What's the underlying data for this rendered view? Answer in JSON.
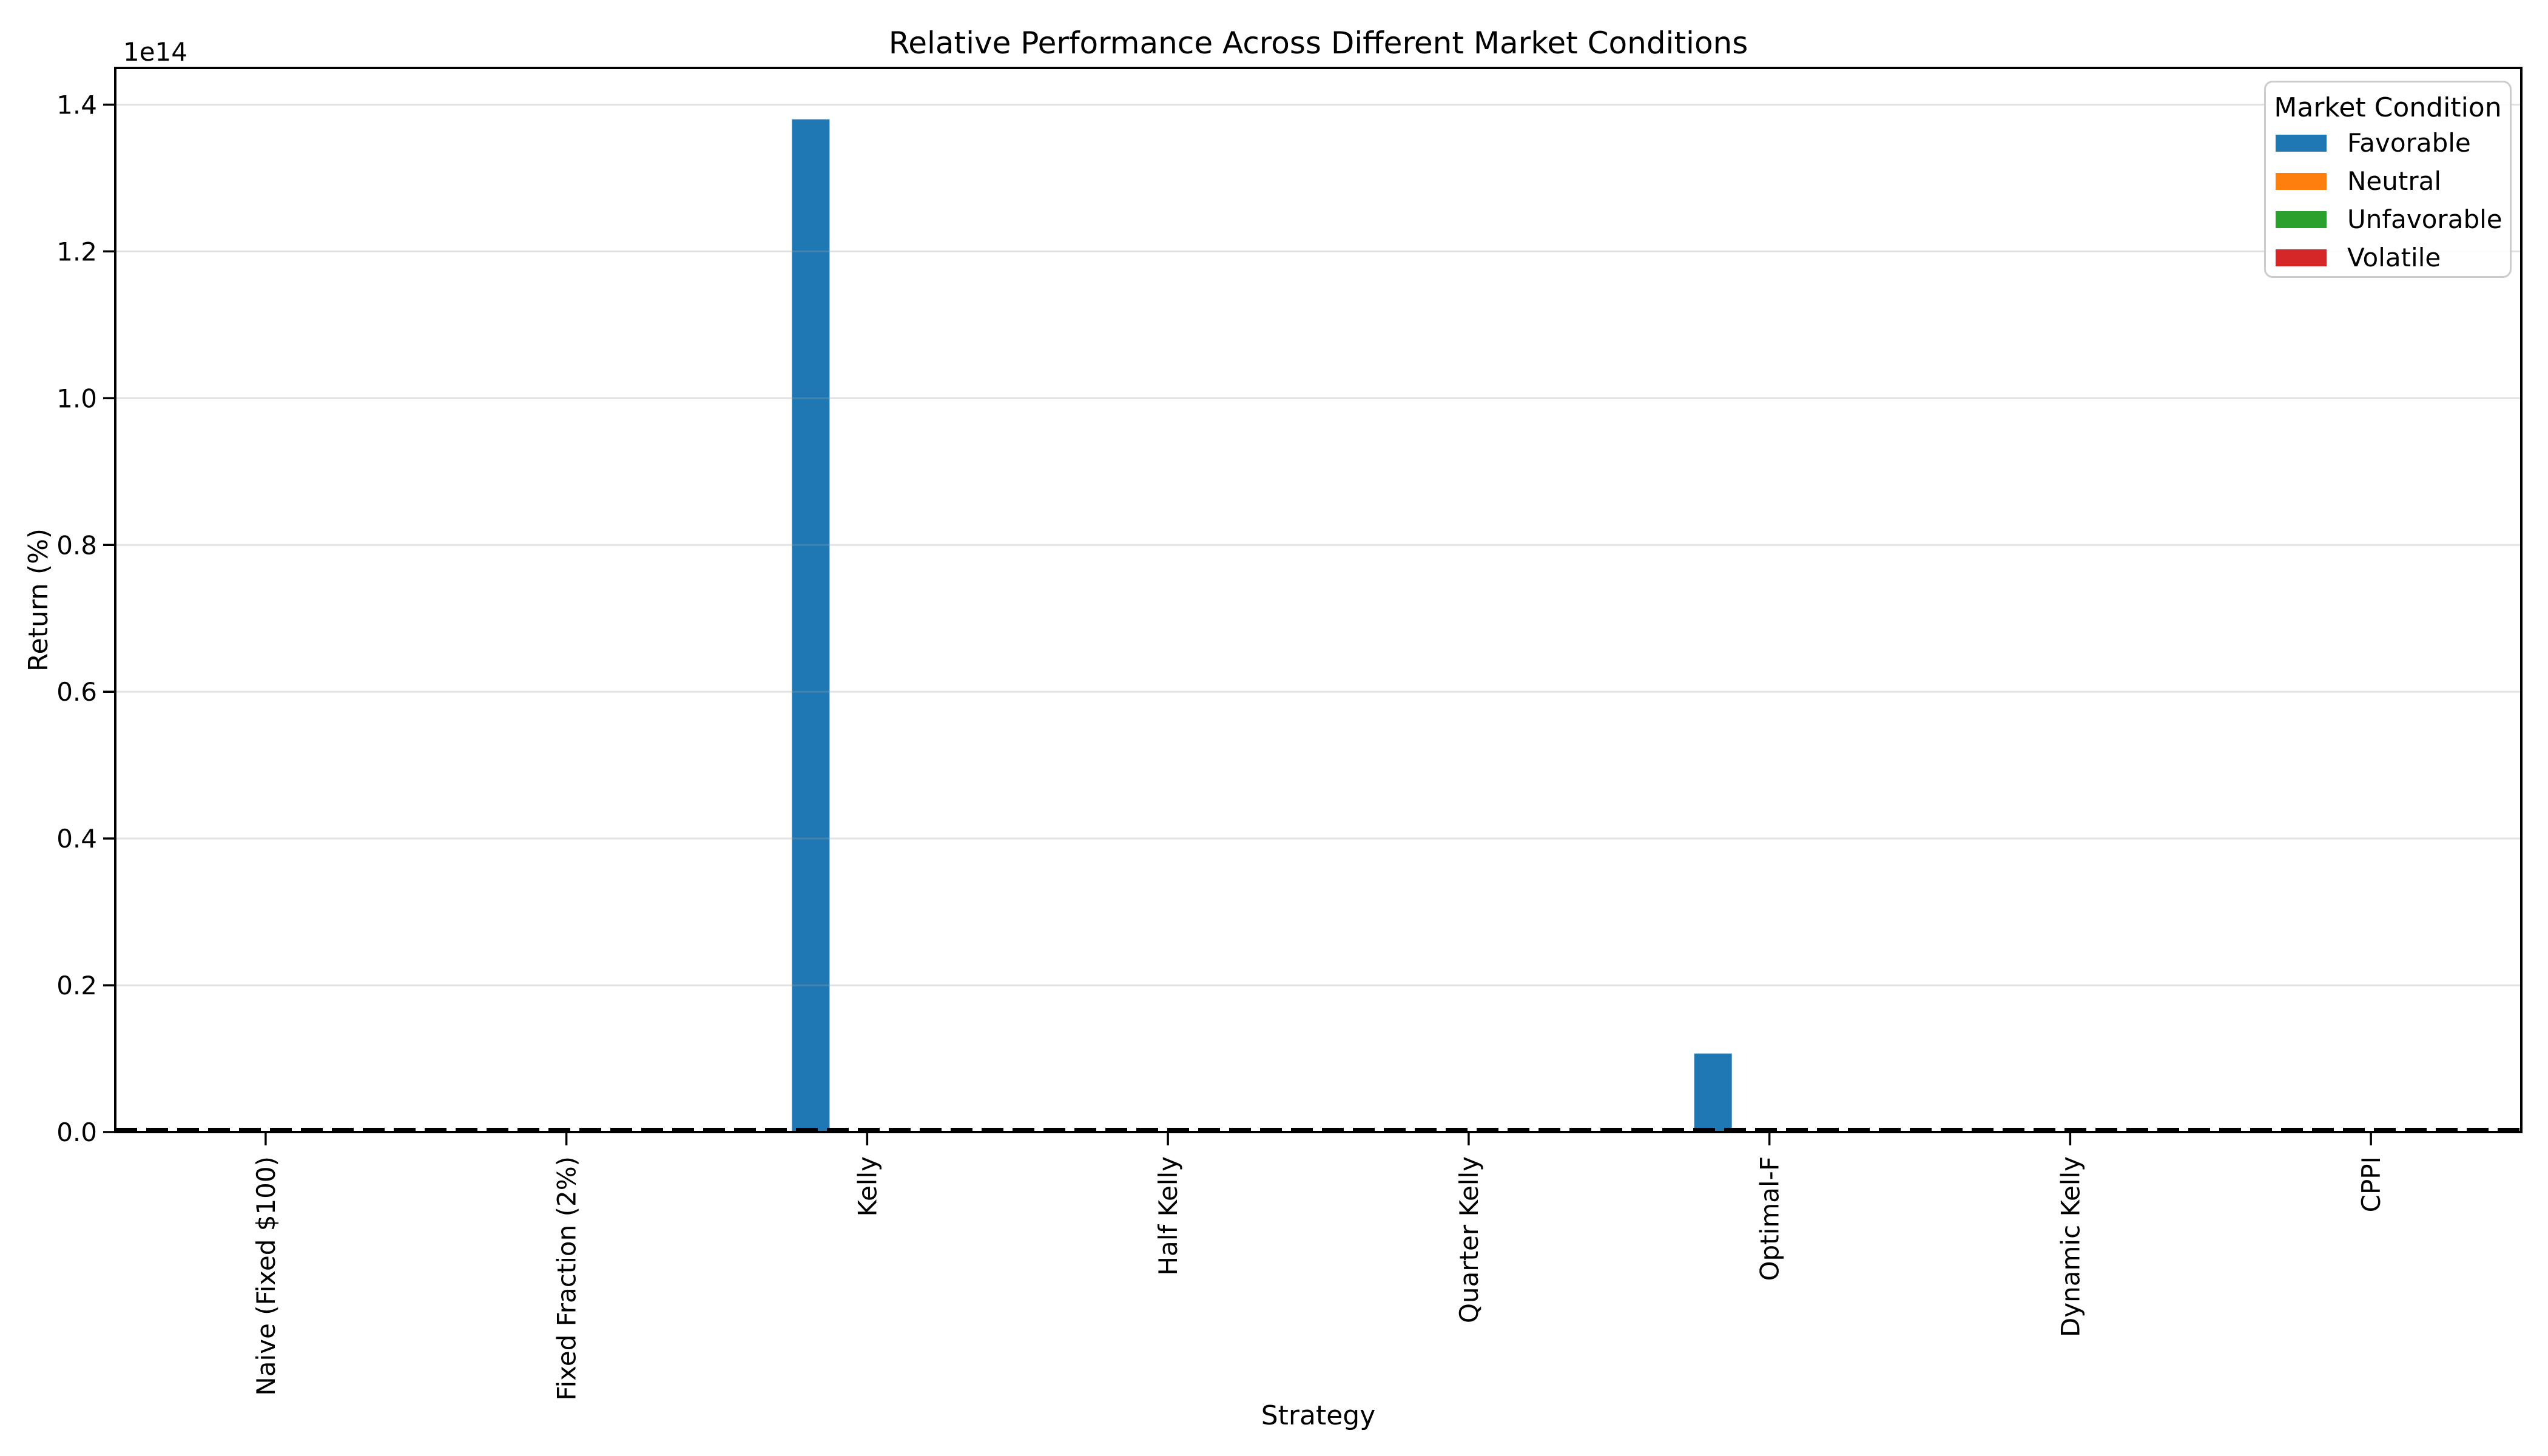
{
  "figure": {
    "background": "#ffffff"
  },
  "chart_data": {
    "type": "bar",
    "title": "Relative Performance Across Different Market Conditions",
    "xlabel": "Strategy",
    "ylabel": "Return (%)",
    "offset_text": "1e14",
    "categories": [
      "Naive (Fixed $100)",
      "Fixed Fraction (2%)",
      "Kelly",
      "Half Kelly",
      "Quarter Kelly",
      "Optimal-F",
      "Dynamic Kelly",
      "CPPI"
    ],
    "series": [
      {
        "name": "Favorable",
        "color": "#1f77b4",
        "values": [
          0,
          0,
          138000000000000.0,
          0,
          0,
          10700000000000.0,
          0,
          0
        ]
      },
      {
        "name": "Neutral",
        "color": "#ff7f0e",
        "values": [
          0,
          0,
          0,
          0,
          0,
          0,
          0,
          0
        ]
      },
      {
        "name": "Unfavorable",
        "color": "#2ca02c",
        "values": [
          0,
          0,
          0,
          0,
          0,
          0,
          0,
          0
        ]
      },
      {
        "name": "Volatile",
        "color": "#d62728",
        "values": [
          0,
          0,
          0,
          0,
          0,
          0,
          0,
          0
        ]
      }
    ],
    "ylim": [
      0,
      145000000000000.0
    ],
    "ytick_values": [
      0,
      20000000000000.0,
      40000000000000.0,
      60000000000000.0,
      80000000000000.0,
      100000000000000.0,
      120000000000000.0,
      140000000000000.0
    ],
    "ytick_labels": [
      "0.0",
      "0.2",
      "0.4",
      "0.6",
      "0.8",
      "1.0",
      "1.2",
      "1.4"
    ],
    "grid": "horizontal",
    "zero_line": {
      "y": 0,
      "style": "dashed",
      "color": "#000000"
    },
    "legend": {
      "title": "Market Condition",
      "position": "upper right"
    }
  }
}
